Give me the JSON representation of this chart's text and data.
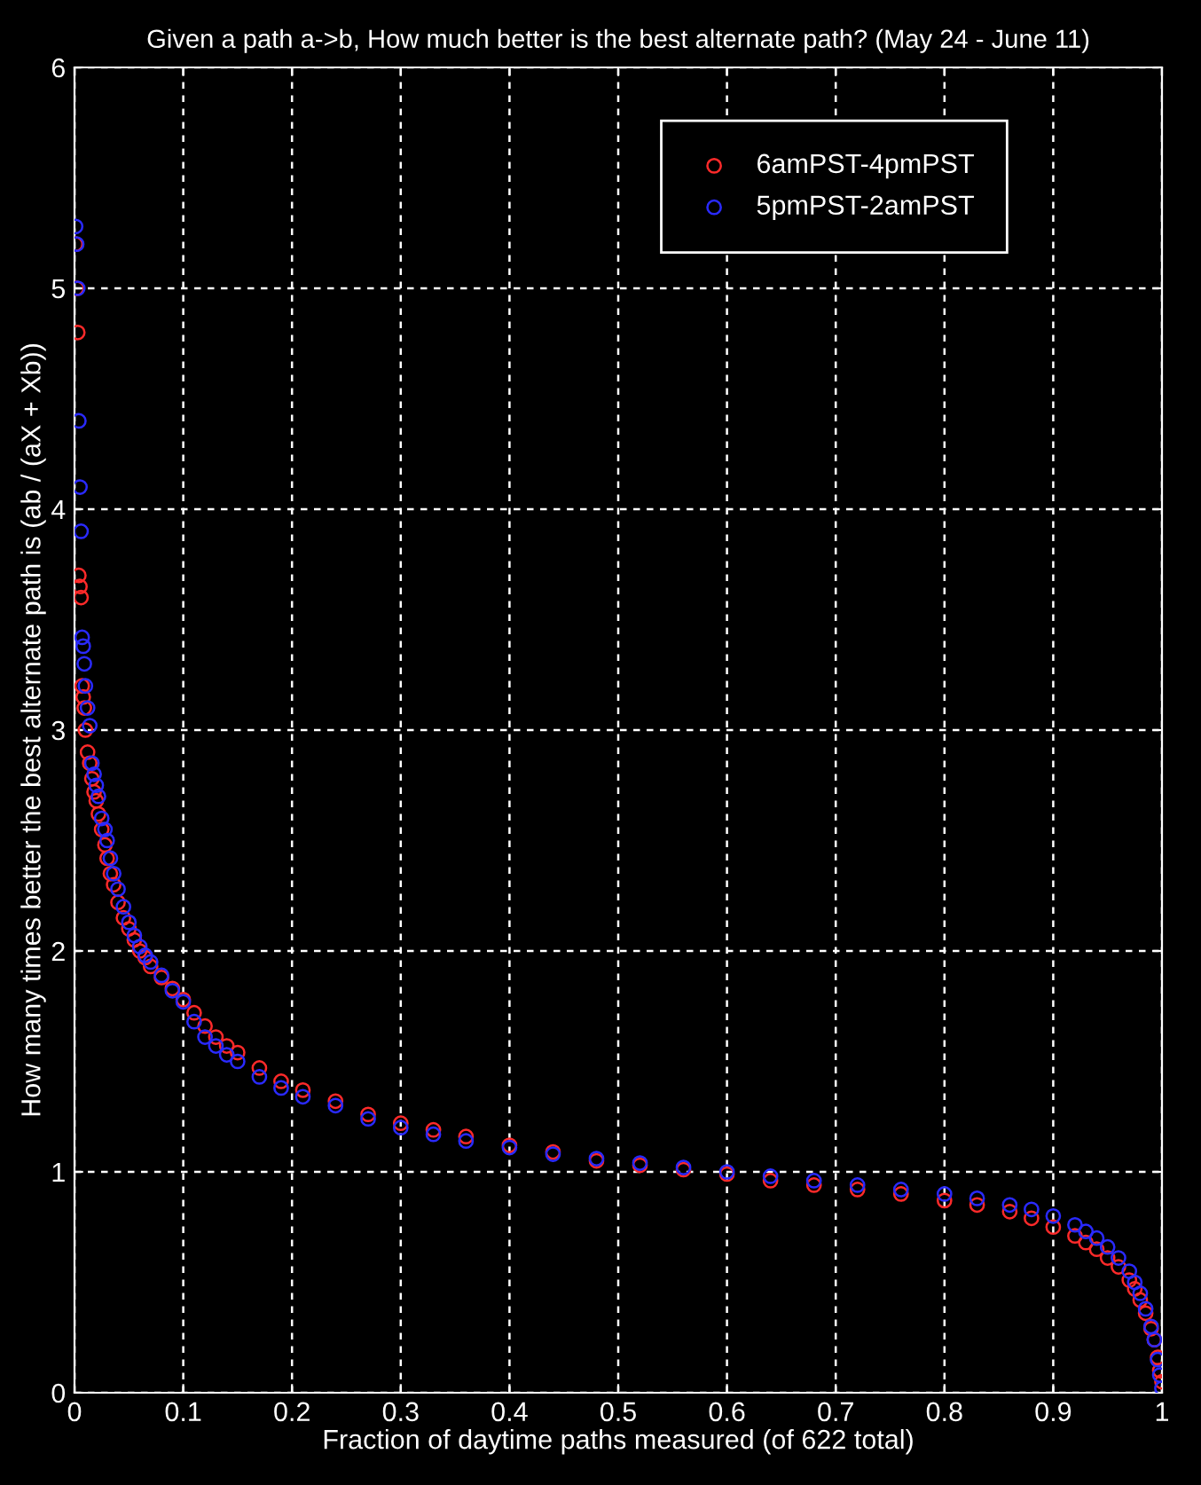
{
  "chart_data": {
    "type": "scatter",
    "title": "Given a path a->b, How much better is the best alternate path? (May 24 - June 11)",
    "xlabel": "Fraction of daytime paths measured (of 622 total)",
    "ylabel": "How many times better the best alternate path is (ab / (aX + Xb))",
    "xlim": [
      0,
      1
    ],
    "ylim": [
      0,
      6
    ],
    "xticks": [
      0,
      0.1,
      0.2,
      0.3,
      0.4,
      0.5,
      0.6,
      0.7,
      0.8,
      0.9,
      1
    ],
    "yticks": [
      0,
      1,
      2,
      3,
      4,
      5,
      6
    ],
    "grid": true,
    "legend": "top right",
    "marker": "circle",
    "series": [
      {
        "name": "6amPST-4pmPST",
        "color": "#ff2a2a",
        "x": [
          0.001,
          0.002,
          0.003,
          0.004,
          0.005,
          0.006,
          0.007,
          0.008,
          0.009,
          0.01,
          0.012,
          0.014,
          0.016,
          0.018,
          0.02,
          0.022,
          0.025,
          0.028,
          0.03,
          0.033,
          0.036,
          0.04,
          0.045,
          0.05,
          0.055,
          0.06,
          0.065,
          0.07,
          0.08,
          0.09,
          0.1,
          0.11,
          0.12,
          0.13,
          0.14,
          0.15,
          0.17,
          0.19,
          0.21,
          0.24,
          0.27,
          0.3,
          0.33,
          0.36,
          0.4,
          0.44,
          0.48,
          0.52,
          0.56,
          0.6,
          0.64,
          0.68,
          0.72,
          0.76,
          0.8,
          0.83,
          0.86,
          0.88,
          0.9,
          0.92,
          0.93,
          0.94,
          0.95,
          0.96,
          0.97,
          0.975,
          0.98,
          0.985,
          0.99,
          0.993,
          0.996,
          0.998,
          1.0
        ],
        "values": [
          5.2,
          5.0,
          4.8,
          3.7,
          3.65,
          3.6,
          3.2,
          3.15,
          3.1,
          3.0,
          2.9,
          2.85,
          2.78,
          2.72,
          2.68,
          2.62,
          2.55,
          2.48,
          2.42,
          2.35,
          2.3,
          2.22,
          2.15,
          2.1,
          2.05,
          2.0,
          1.97,
          1.93,
          1.88,
          1.83,
          1.78,
          1.72,
          1.66,
          1.61,
          1.57,
          1.54,
          1.47,
          1.41,
          1.37,
          1.32,
          1.26,
          1.22,
          1.19,
          1.16,
          1.12,
          1.09,
          1.05,
          1.03,
          1.01,
          0.99,
          0.96,
          0.94,
          0.92,
          0.9,
          0.87,
          0.85,
          0.82,
          0.79,
          0.75,
          0.71,
          0.68,
          0.65,
          0.61,
          0.57,
          0.51,
          0.47,
          0.42,
          0.36,
          0.29,
          0.24,
          0.16,
          0.1,
          0.05
        ]
      },
      {
        "name": "5pmPST-2amPST",
        "color": "#2a2aff",
        "x": [
          0.001,
          0.002,
          0.003,
          0.004,
          0.005,
          0.006,
          0.007,
          0.008,
          0.009,
          0.01,
          0.012,
          0.014,
          0.016,
          0.018,
          0.02,
          0.022,
          0.025,
          0.028,
          0.03,
          0.033,
          0.036,
          0.04,
          0.045,
          0.05,
          0.055,
          0.06,
          0.065,
          0.07,
          0.08,
          0.09,
          0.1,
          0.11,
          0.12,
          0.13,
          0.14,
          0.15,
          0.17,
          0.19,
          0.21,
          0.24,
          0.27,
          0.3,
          0.33,
          0.36,
          0.4,
          0.44,
          0.48,
          0.52,
          0.56,
          0.6,
          0.64,
          0.68,
          0.72,
          0.76,
          0.8,
          0.83,
          0.86,
          0.88,
          0.9,
          0.92,
          0.93,
          0.94,
          0.95,
          0.96,
          0.97,
          0.975,
          0.98,
          0.985,
          0.99,
          0.993,
          0.996,
          0.998,
          1.0
        ],
        "values": [
          5.28,
          5.2,
          5.0,
          4.4,
          4.1,
          3.9,
          3.42,
          3.38,
          3.3,
          3.2,
          3.1,
          3.02,
          2.85,
          2.8,
          2.75,
          2.7,
          2.6,
          2.55,
          2.5,
          2.42,
          2.35,
          2.28,
          2.2,
          2.13,
          2.07,
          2.02,
          1.98,
          1.95,
          1.89,
          1.82,
          1.77,
          1.68,
          1.61,
          1.57,
          1.53,
          1.5,
          1.43,
          1.38,
          1.34,
          1.3,
          1.24,
          1.2,
          1.17,
          1.14,
          1.11,
          1.08,
          1.06,
          1.04,
          1.02,
          1.0,
          0.98,
          0.96,
          0.94,
          0.92,
          0.9,
          0.88,
          0.85,
          0.83,
          0.8,
          0.76,
          0.73,
          0.7,
          0.66,
          0.61,
          0.55,
          0.5,
          0.45,
          0.38,
          0.3,
          0.24,
          0.15,
          0.08,
          0.02
        ]
      }
    ]
  }
}
